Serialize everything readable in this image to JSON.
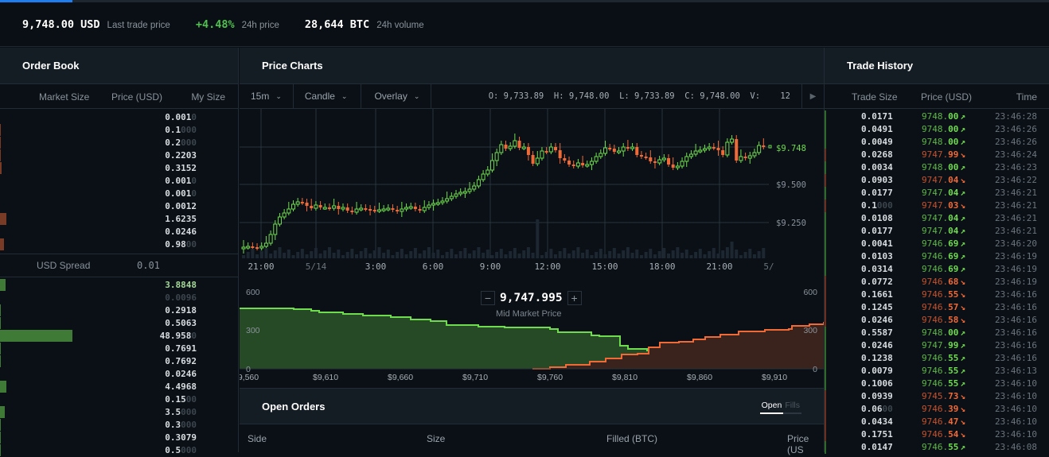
{
  "ticker": {
    "last_price": "9,748.00 USD",
    "last_price_label": "Last trade price",
    "change": "+4.48%",
    "change_label": "24h price",
    "volume": "28,644 BTC",
    "volume_label": "24h volume"
  },
  "order_book": {
    "title": "Order Book",
    "columns": [
      "Market Size",
      "Price (USD)",
      "My Size"
    ],
    "asks": [
      {
        "main": "0.001",
        "dim": "0",
        "bar": 0
      },
      {
        "main": "0.1",
        "dim": "000",
        "bar": 1
      },
      {
        "main": "0.2",
        "dim": "000",
        "bar": 1
      },
      {
        "main": "0.2203",
        "dim": "",
        "bar": 1
      },
      {
        "main": "0.3152",
        "dim": "",
        "bar": 2
      },
      {
        "main": "0.001",
        "dim": "0",
        "bar": 0
      },
      {
        "main": "0.001",
        "dim": "0",
        "bar": 0
      },
      {
        "main": "0.0012",
        "dim": "",
        "bar": 0
      },
      {
        "main": "1.6235",
        "dim": "",
        "bar": 8
      },
      {
        "main": "0.0246",
        "dim": "",
        "bar": 0
      },
      {
        "main": "0.98",
        "dim": "00",
        "bar": 5
      }
    ],
    "spread_label": "USD Spread",
    "spread_value": "0.01",
    "bids": [
      {
        "main": "3.8848",
        "dim": "",
        "bar": 7,
        "color": "#a6d89a"
      },
      {
        "main": "",
        "dim": "0.0096",
        "bar": 0
      },
      {
        "main": "0.2918",
        "dim": "",
        "bar": 1
      },
      {
        "main": "0.5063",
        "dim": "",
        "bar": 1
      },
      {
        "main": "48.958",
        "dim": "0",
        "bar": 91
      },
      {
        "main": "0.7691",
        "dim": "",
        "bar": 1
      },
      {
        "main": "0.7692",
        "dim": "",
        "bar": 1
      },
      {
        "main": "0.0246",
        "dim": "",
        "bar": 0
      },
      {
        "main": "4.4968",
        "dim": "",
        "bar": 8
      },
      {
        "main": "0.15",
        "dim": "00",
        "bar": 0
      },
      {
        "main": "3.5",
        "dim": "000",
        "bar": 6
      },
      {
        "main": "0.3",
        "dim": "000",
        "bar": 1
      },
      {
        "main": "0.3079",
        "dim": "",
        "bar": 1
      },
      {
        "main": "0.5",
        "dim": "000",
        "bar": 1
      }
    ]
  },
  "price_charts": {
    "title": "Price Charts",
    "interval": "15m",
    "chart_type": "Candle",
    "overlay": "Overlay",
    "ohlc": "O: 9,733.89  H: 9,748.00  L: 9,733.89  C: 9,748.00  V:    12",
    "x_labels": [
      "21:00",
      "5/14",
      "3:00",
      "6:00",
      "9:00",
      "12:00",
      "15:00",
      "18:00",
      "21:00",
      "5/"
    ],
    "y_labels": [
      "$9.500",
      "$9.250"
    ],
    "current_price_label": "$9.748",
    "mid_market_price": "9,747.995",
    "mid_market_label": "Mid Market Price",
    "depth_x_labels": [
      "$9,560",
      "$9,610",
      "$9,660",
      "$9,710",
      "$9,760",
      "$9,810",
      "$9,860",
      "$9,910"
    ],
    "depth_y_labels": [
      "600",
      "300",
      "0"
    ]
  },
  "open_orders": {
    "title": "Open Orders",
    "tabs": [
      "Open",
      "Fills"
    ],
    "columns": [
      "Side",
      "Size",
      "Filled (BTC)",
      "Price (US"
    ]
  },
  "trade_history": {
    "title": "Trade History",
    "columns": [
      "Trade Size",
      "Price (USD)",
      "Time"
    ],
    "rows": [
      {
        "size": "0.0171",
        "sdim": "",
        "price": "9748.",
        "cents": "00",
        "dir": "up",
        "time": "23:46:28"
      },
      {
        "size": "0.0491",
        "sdim": "",
        "price": "9748.",
        "cents": "00",
        "dir": "up",
        "time": "23:46:26"
      },
      {
        "size": "0.0049",
        "sdim": "",
        "price": "9748.",
        "cents": "00",
        "dir": "up",
        "time": "23:46:26"
      },
      {
        "size": "0.0268",
        "sdim": "",
        "price": "9747.",
        "cents": "99",
        "dir": "down",
        "time": "23:46:24"
      },
      {
        "size": "0.0034",
        "sdim": "",
        "price": "9748.",
        "cents": "00",
        "dir": "up",
        "time": "23:46:23"
      },
      {
        "size": "0.0903",
        "sdim": "",
        "price": "9747.",
        "cents": "04",
        "dir": "down",
        "time": "23:46:22"
      },
      {
        "size": "0.0177",
        "sdim": "",
        "price": "9747.",
        "cents": "04",
        "dir": "up",
        "time": "23:46:21"
      },
      {
        "size": "0.1",
        "sdim": "000",
        "price": "9747.",
        "cents": "03",
        "dir": "down",
        "time": "23:46:21"
      },
      {
        "size": "0.0108",
        "sdim": "",
        "price": "9747.",
        "cents": "04",
        "dir": "up",
        "time": "23:46:21"
      },
      {
        "size": "0.0177",
        "sdim": "",
        "price": "9747.",
        "cents": "04",
        "dir": "up",
        "time": "23:46:21"
      },
      {
        "size": "0.0041",
        "sdim": "",
        "price": "9746.",
        "cents": "69",
        "dir": "up",
        "time": "23:46:20"
      },
      {
        "size": "0.0103",
        "sdim": "",
        "price": "9746.",
        "cents": "69",
        "dir": "up",
        "time": "23:46:19"
      },
      {
        "size": "0.0314",
        "sdim": "",
        "price": "9746.",
        "cents": "69",
        "dir": "up",
        "time": "23:46:19"
      },
      {
        "size": "0.0772",
        "sdim": "",
        "price": "9746.",
        "cents": "68",
        "dir": "down",
        "time": "23:46:19"
      },
      {
        "size": "0.1661",
        "sdim": "",
        "price": "9746.",
        "cents": "55",
        "dir": "down",
        "time": "23:46:16"
      },
      {
        "size": "0.1245",
        "sdim": "",
        "price": "9746.",
        "cents": "57",
        "dir": "down",
        "time": "23:46:16"
      },
      {
        "size": "0.0246",
        "sdim": "",
        "price": "9746.",
        "cents": "58",
        "dir": "down",
        "time": "23:46:16"
      },
      {
        "size": "0.5587",
        "sdim": "",
        "price": "9748.",
        "cents": "00",
        "dir": "up",
        "time": "23:46:16"
      },
      {
        "size": "0.0246",
        "sdim": "",
        "price": "9747.",
        "cents": "99",
        "dir": "up",
        "time": "23:46:16"
      },
      {
        "size": "0.1238",
        "sdim": "",
        "price": "9746.",
        "cents": "55",
        "dir": "up",
        "time": "23:46:16"
      },
      {
        "size": "0.0079",
        "sdim": "",
        "price": "9746.",
        "cents": "55",
        "dir": "up",
        "time": "23:46:13"
      },
      {
        "size": "0.1006",
        "sdim": "",
        "price": "9746.",
        "cents": "55",
        "dir": "up",
        "time": "23:46:10"
      },
      {
        "size": "0.0939",
        "sdim": "",
        "price": "9745.",
        "cents": "73",
        "dir": "down",
        "time": "23:46:10"
      },
      {
        "size": "0.06",
        "sdim": "00",
        "price": "9746.",
        "cents": "39",
        "dir": "down",
        "time": "23:46:10"
      },
      {
        "size": "0.0434",
        "sdim": "",
        "price": "9746.",
        "cents": "47",
        "dir": "down",
        "time": "23:46:10"
      },
      {
        "size": "0.1751",
        "sdim": "",
        "price": "9746.",
        "cents": "54",
        "dir": "down",
        "time": "23:46:10"
      },
      {
        "size": "0.0147",
        "sdim": "",
        "price": "9746.",
        "cents": "55",
        "dir": "up",
        "time": "23:46:08"
      }
    ]
  },
  "colors": {
    "up": "#6fdc4f",
    "down": "#f06a37",
    "accent": "#1e7ef0",
    "bid_fill": "#274a26",
    "ask_fill": "#3a231d"
  }
}
